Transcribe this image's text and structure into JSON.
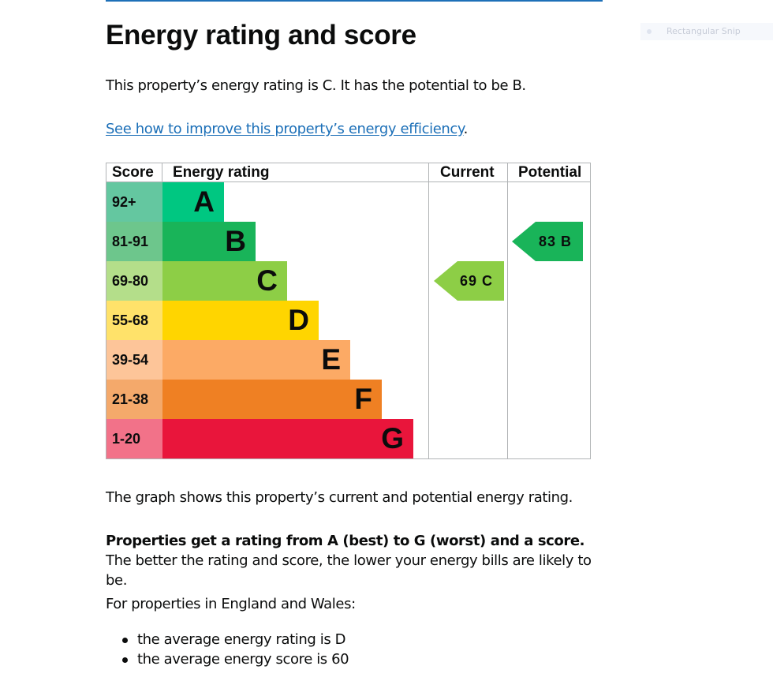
{
  "page": {
    "title": "Energy rating and score",
    "intro": "This property’s energy rating is C. It has the potential to be B.",
    "link_text": "See how to improve this property’s energy efficiency",
    "link_suffix": ".",
    "graph_note": "The graph shows this property’s current and potential energy rating.",
    "rating_bold": "Properties get a rating from A (best) to G (worst) and a score.",
    "rating_rest": " The better the rating and score, the lower your energy bills are likely to be.",
    "region_intro": "For properties in England and Wales:",
    "bullets": [
      "the average energy rating is D",
      "the average energy score is 60"
    ]
  },
  "overlay": {
    "snip_label": "Rectangular Snip"
  },
  "chart_data": {
    "type": "table",
    "headers": {
      "score": "Score",
      "rating": "Energy rating",
      "current": "Current",
      "potential": "Potential"
    },
    "bands": [
      {
        "letter": "A",
        "range": "92+",
        "color": "#00c781",
        "score_bg": "#64c7a0"
      },
      {
        "letter": "B",
        "range": "81-91",
        "color": "#19b459",
        "score_bg": "#6dc68c"
      },
      {
        "letter": "C",
        "range": "69-80",
        "color": "#8dce46",
        "score_bg": "#b4de8a"
      },
      {
        "letter": "D",
        "range": "55-68",
        "color": "#ffd500",
        "score_bg": "#ffe26a"
      },
      {
        "letter": "E",
        "range": "39-54",
        "color": "#fcaa65",
        "score_bg": "#fdc599"
      },
      {
        "letter": "F",
        "range": "21-38",
        "color": "#ef8023",
        "score_bg": "#f4a96b"
      },
      {
        "letter": "G",
        "range": "1-20",
        "color": "#e9153b",
        "score_bg": "#f27289"
      }
    ],
    "current": {
      "score": 69,
      "letter": "C",
      "label": "69 C",
      "color": "#8dce46"
    },
    "potential": {
      "score": 83,
      "letter": "B",
      "label": "83 B",
      "color": "#19b459"
    }
  }
}
